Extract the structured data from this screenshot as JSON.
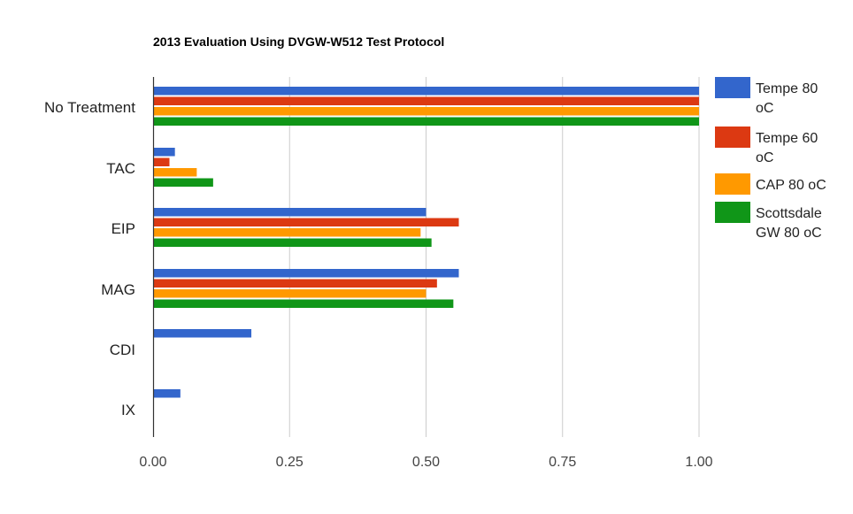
{
  "chart_data": {
    "type": "bar",
    "orientation": "horizontal",
    "title": "2013 Evaluation Using DVGW-W512 Test Protocol",
    "xlabel": "",
    "ylabel": "",
    "xlim": [
      0,
      1
    ],
    "grid": true,
    "legend_position": "right",
    "x_ticks": [
      "0.00",
      "0.25",
      "0.50",
      "0.75",
      "1.00"
    ],
    "x_tick_values": [
      0,
      0.25,
      0.5,
      0.75,
      1.0
    ],
    "categories": [
      "No Treatment",
      "TAC",
      "EIP",
      "MAG",
      "CDI",
      "IX"
    ],
    "series": [
      {
        "name": "Tempe 80 oC",
        "legend_lines": [
          "Tempe 80",
          "oC"
        ],
        "color": "#3366cc",
        "values": [
          1.0,
          0.04,
          0.5,
          0.56,
          0.18,
          0.05
        ]
      },
      {
        "name": "Tempe 60 oC",
        "legend_lines": [
          "Tempe 60",
          "oC"
        ],
        "color": "#dc3912",
        "values": [
          1.0,
          0.03,
          0.56,
          0.52,
          0,
          0
        ]
      },
      {
        "name": "CAP 80 oC",
        "legend_lines": [
          "CAP 80 oC"
        ],
        "color": "#ff9900",
        "values": [
          1.0,
          0.08,
          0.49,
          0.5,
          0,
          0
        ]
      },
      {
        "name": "Scottsdale GW 80 oC",
        "legend_lines": [
          "Scottsdale",
          "GW 80 oC"
        ],
        "color": "#109618",
        "values": [
          1.0,
          0.11,
          0.51,
          0.55,
          0,
          0
        ]
      }
    ]
  }
}
